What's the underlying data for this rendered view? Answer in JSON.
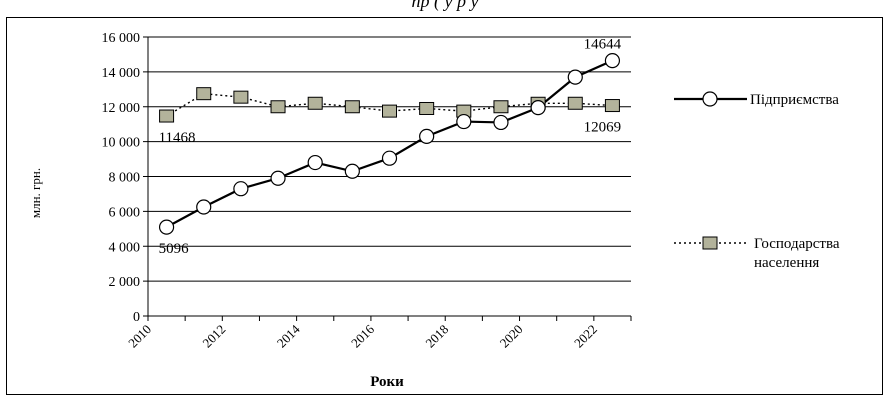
{
  "header": {
    "title": "пр         (           у      р                                        у"
  },
  "chart_data": {
    "type": "line",
    "title": "",
    "xlabel": "Роки",
    "ylabel": "млн. грн.",
    "ylim": [
      0,
      16000
    ],
    "yticks": [
      0,
      2000,
      4000,
      6000,
      8000,
      10000,
      12000,
      14000,
      16000
    ],
    "ytick_labels": [
      "0",
      "2 000",
      "4 000",
      "6 000",
      "8 000",
      "10 000",
      "12 000",
      "14 000",
      "16 000"
    ],
    "xticks": [
      2010,
      2012,
      2014,
      2016,
      2018,
      2020,
      2022
    ],
    "grid": true,
    "legend_position": "right",
    "x": [
      2010.5,
      2011.5,
      2012.5,
      2013.5,
      2014.5,
      2015.5,
      2016.5,
      2017.5,
      2018.5,
      2019.5,
      2020.5,
      2021.5,
      2022.5
    ],
    "series": [
      {
        "name": "Підприємства",
        "style": "solid-circle",
        "values": [
          5096,
          6250,
          7300,
          7900,
          8800,
          8300,
          9050,
          10300,
          11150,
          11100,
          11950,
          13700,
          14644
        ]
      },
      {
        "name": "Господарства населення",
        "style": "dotted-square",
        "values": [
          11468,
          12750,
          12550,
          12000,
          12200,
          12000,
          11750,
          11900,
          11750,
          12000,
          12200,
          12200,
          12069
        ]
      }
    ],
    "annotations": [
      {
        "label": "5096",
        "series": 0,
        "index": 0,
        "pos": "below"
      },
      {
        "label": "14644",
        "series": 0,
        "index": 12,
        "pos": "above"
      },
      {
        "label": "11468",
        "series": 1,
        "index": 0,
        "pos": "below"
      },
      {
        "label": "12069",
        "series": 1,
        "index": 12,
        "pos": "below"
      }
    ],
    "colors": {
      "line": "#000000",
      "marker_fill_circle": "#ffffff",
      "marker_fill_square": "#b3b39b"
    }
  }
}
